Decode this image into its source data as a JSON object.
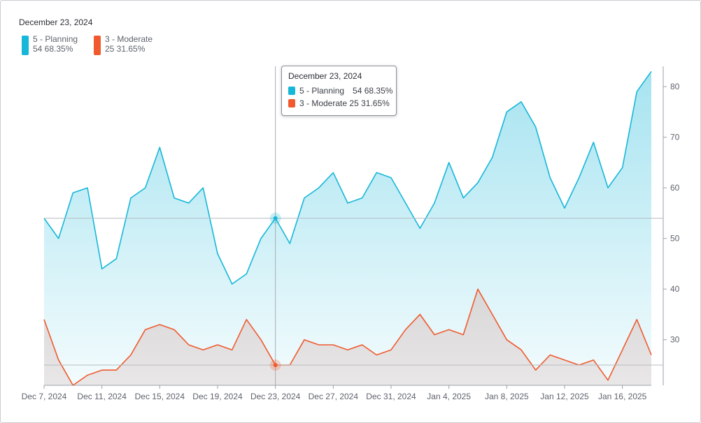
{
  "legend": {
    "date": "December 23, 2024",
    "items": [
      {
        "name": "5 - Planning",
        "stats": "54 68.35%",
        "color": "#17b7d9"
      },
      {
        "name": "3 - Moderate",
        "stats": "25 31.65%",
        "color": "#f05a2e"
      }
    ]
  },
  "tooltip": {
    "date": "December 23, 2024",
    "rows": [
      {
        "label": "5 - Planning",
        "value": "54",
        "pct": "68.35%",
        "color": "#17b7d9"
      },
      {
        "label": "3 - Moderate",
        "value": "25",
        "pct": "31.65%",
        "color": "#f05a2e"
      }
    ]
  },
  "chart_data": {
    "type": "area",
    "x_start": "2024-12-07",
    "x_end": "2025-01-18",
    "x_ticks": [
      "Dec 7, 2024",
      "Dec 11, 2024",
      "Dec 15, 2024",
      "Dec 19, 2024",
      "Dec 23, 2024",
      "Dec 27, 2024",
      "Dec 31, 2024",
      "Jan 4, 2025",
      "Jan 8, 2025",
      "Jan 12, 2025",
      "Jan 16, 2025"
    ],
    "y_ticks": [
      30,
      40,
      50,
      60,
      70,
      80
    ],
    "ylim": [
      21,
      84
    ],
    "y_axis_side": "right",
    "highlight_date": "2024-12-23",
    "series": [
      {
        "name": "5 - Planning",
        "color": "#17b7d9",
        "values": [
          54,
          50,
          59,
          60,
          44,
          46,
          58,
          60,
          68,
          58,
          57,
          60,
          47,
          41,
          43,
          50,
          54,
          49,
          58,
          60,
          63,
          57,
          58,
          63,
          62,
          57,
          52,
          57,
          65,
          58,
          61,
          66,
          75,
          77,
          72,
          62,
          56,
          62,
          69,
          60,
          64,
          79,
          83
        ]
      },
      {
        "name": "3 - Moderate",
        "color": "#f05a2e",
        "values": [
          34,
          26,
          21,
          23,
          24,
          24,
          27,
          32,
          33,
          32,
          29,
          28,
          29,
          28,
          34,
          30,
          25,
          25,
          30,
          29,
          29,
          28,
          29,
          27,
          28,
          32,
          35,
          31,
          32,
          31,
          40,
          35,
          30,
          28,
          24,
          27,
          26,
          25,
          26,
          22,
          28,
          34,
          27
        ]
      }
    ]
  }
}
